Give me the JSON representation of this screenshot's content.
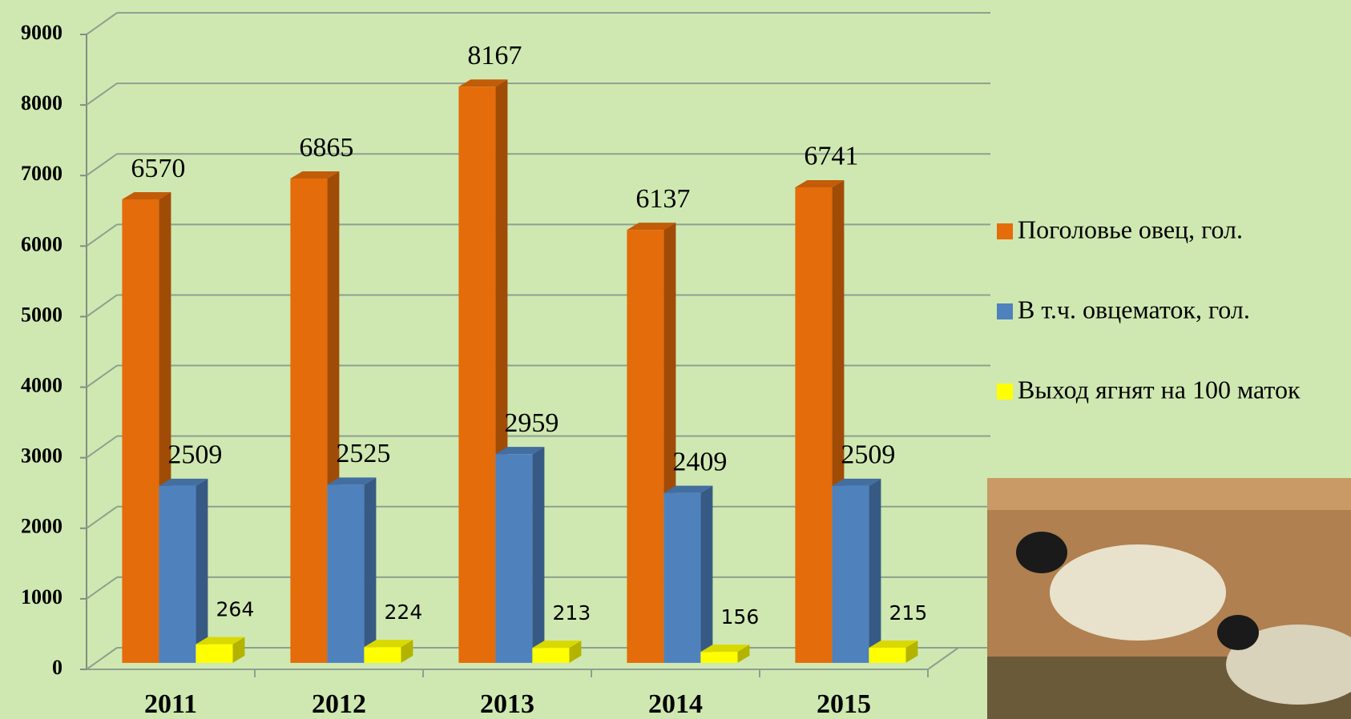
{
  "chart_data": {
    "type": "bar",
    "categories": [
      "2011",
      "2012",
      "2013",
      "2014",
      "2015"
    ],
    "series": [
      {
        "name": "Поголовье овец, гол.",
        "color": "#e46c0a",
        "values": [
          6570,
          6865,
          8167,
          6137,
          6741
        ]
      },
      {
        "name": "В т.ч. овцематок, гол.",
        "color": "#4f81bd",
        "values": [
          2509,
          2525,
          2959,
          2409,
          2509
        ]
      },
      {
        "name": "Выход ягнят на 100 маток",
        "color": "#ffff00",
        "values": [
          264,
          224,
          213,
          156,
          215
        ]
      }
    ],
    "ylim": [
      0,
      9000
    ],
    "yticks": [
      0,
      1000,
      2000,
      3000,
      4000,
      5000,
      6000,
      7000,
      8000,
      9000
    ],
    "grid": true,
    "legend": "right"
  }
}
